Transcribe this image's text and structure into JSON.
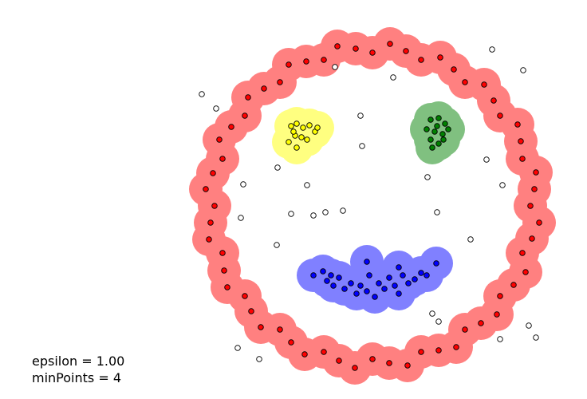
{
  "chart_data": {
    "type": "scatter",
    "epsilon_text": "epsilon = 1.00",
    "min_points_text": "minPoints = 4",
    "series": [
      {
        "color": "#ff0000",
        "halo_color": "#ff8080",
        "x": [
          665,
          676,
          667,
          655,
          659,
          644,
          627,
          623,
          603,
          583,
          572,
          550,
          528,
          511,
          488,
          467,
          445,
          425,
          406,
          382,
          365,
          351,
          327,
          315,
          307,
          285,
          281,
          279,
          262,
          264,
          269,
          258,
          267,
          279,
          275,
          290,
          307,
          311,
          331,
          351,
          362,
          384,
          406,
          423,
          446,
          467,
          489,
          509,
          528,
          552,
          569,
          583,
          607,
          619,
          627,
          649,
          653,
          655,
          672,
          670
        ],
        "y": [
          258,
          279,
          299,
          317,
          341,
          357,
          371,
          394,
          405,
          413,
          435,
          439,
          441,
          458,
          455,
          450,
          461,
          452,
          441,
          444,
          429,
          413,
          410,
          390,
          371,
          360,
          339,
          317,
          300,
          279,
          258,
          237,
          217,
          199,
          175,
          159,
          145,
          122,
          111,
          103,
          81,
          77,
          75,
          58,
          61,
          66,
          55,
          64,
          75,
          72,
          87,
          103,
          106,
          126,
          145,
          156,
          177,
          199,
          216,
          237
        ]
      },
      {
        "color": "#ffff00",
        "halo_color": "#ffff80",
        "x": [
          365,
          372,
          380,
          388,
          395,
          370,
          378,
          385,
          362,
          372,
          368,
          398
        ],
        "y": [
          158,
          155,
          160,
          157,
          165,
          170,
          172,
          175,
          178,
          185,
          165,
          160
        ]
      },
      {
        "color": "#008000",
        "halo_color": "#80c080",
        "x": [
          540,
          550,
          558,
          535,
          545,
          555,
          562,
          540,
          550,
          548,
          542,
          556
        ],
        "y": [
          150,
          148,
          155,
          162,
          165,
          168,
          162,
          175,
          180,
          158,
          185,
          175
        ]
      },
      {
        "color": "#0000ff",
        "halo_color": "#8080ff",
        "x": [
          393,
          405,
          410,
          418,
          425,
          432,
          440,
          447,
          452,
          460,
          463,
          470,
          475,
          482,
          488,
          495,
          500,
          505,
          512,
          520,
          528,
          535,
          547,
          500,
          460,
          415
        ],
        "y": [
          345,
          340,
          352,
          358,
          348,
          362,
          355,
          368,
          358,
          365,
          345,
          372,
          355,
          362,
          348,
          358,
          368,
          345,
          355,
          350,
          342,
          345,
          330,
          335,
          328,
          345
        ]
      },
      {
        "color": "#ffffff",
        "x": [
          253,
          271,
          420,
          493,
          617,
          656,
          452,
          454,
          536,
          348,
          385,
          305,
          610,
          630,
          302,
          365,
          393,
          408,
          430,
          548,
          590,
          347,
          542,
          550,
          663,
          672,
          298,
          325,
          627
        ],
        "y": [
          118,
          136,
          84,
          97,
          62,
          88,
          145,
          183,
          222,
          210,
          232,
          231,
          200,
          232,
          273,
          268,
          270,
          266,
          264,
          266,
          300,
          307,
          393,
          403,
          408,
          423,
          436,
          450,
          425
        ]
      }
    ]
  }
}
